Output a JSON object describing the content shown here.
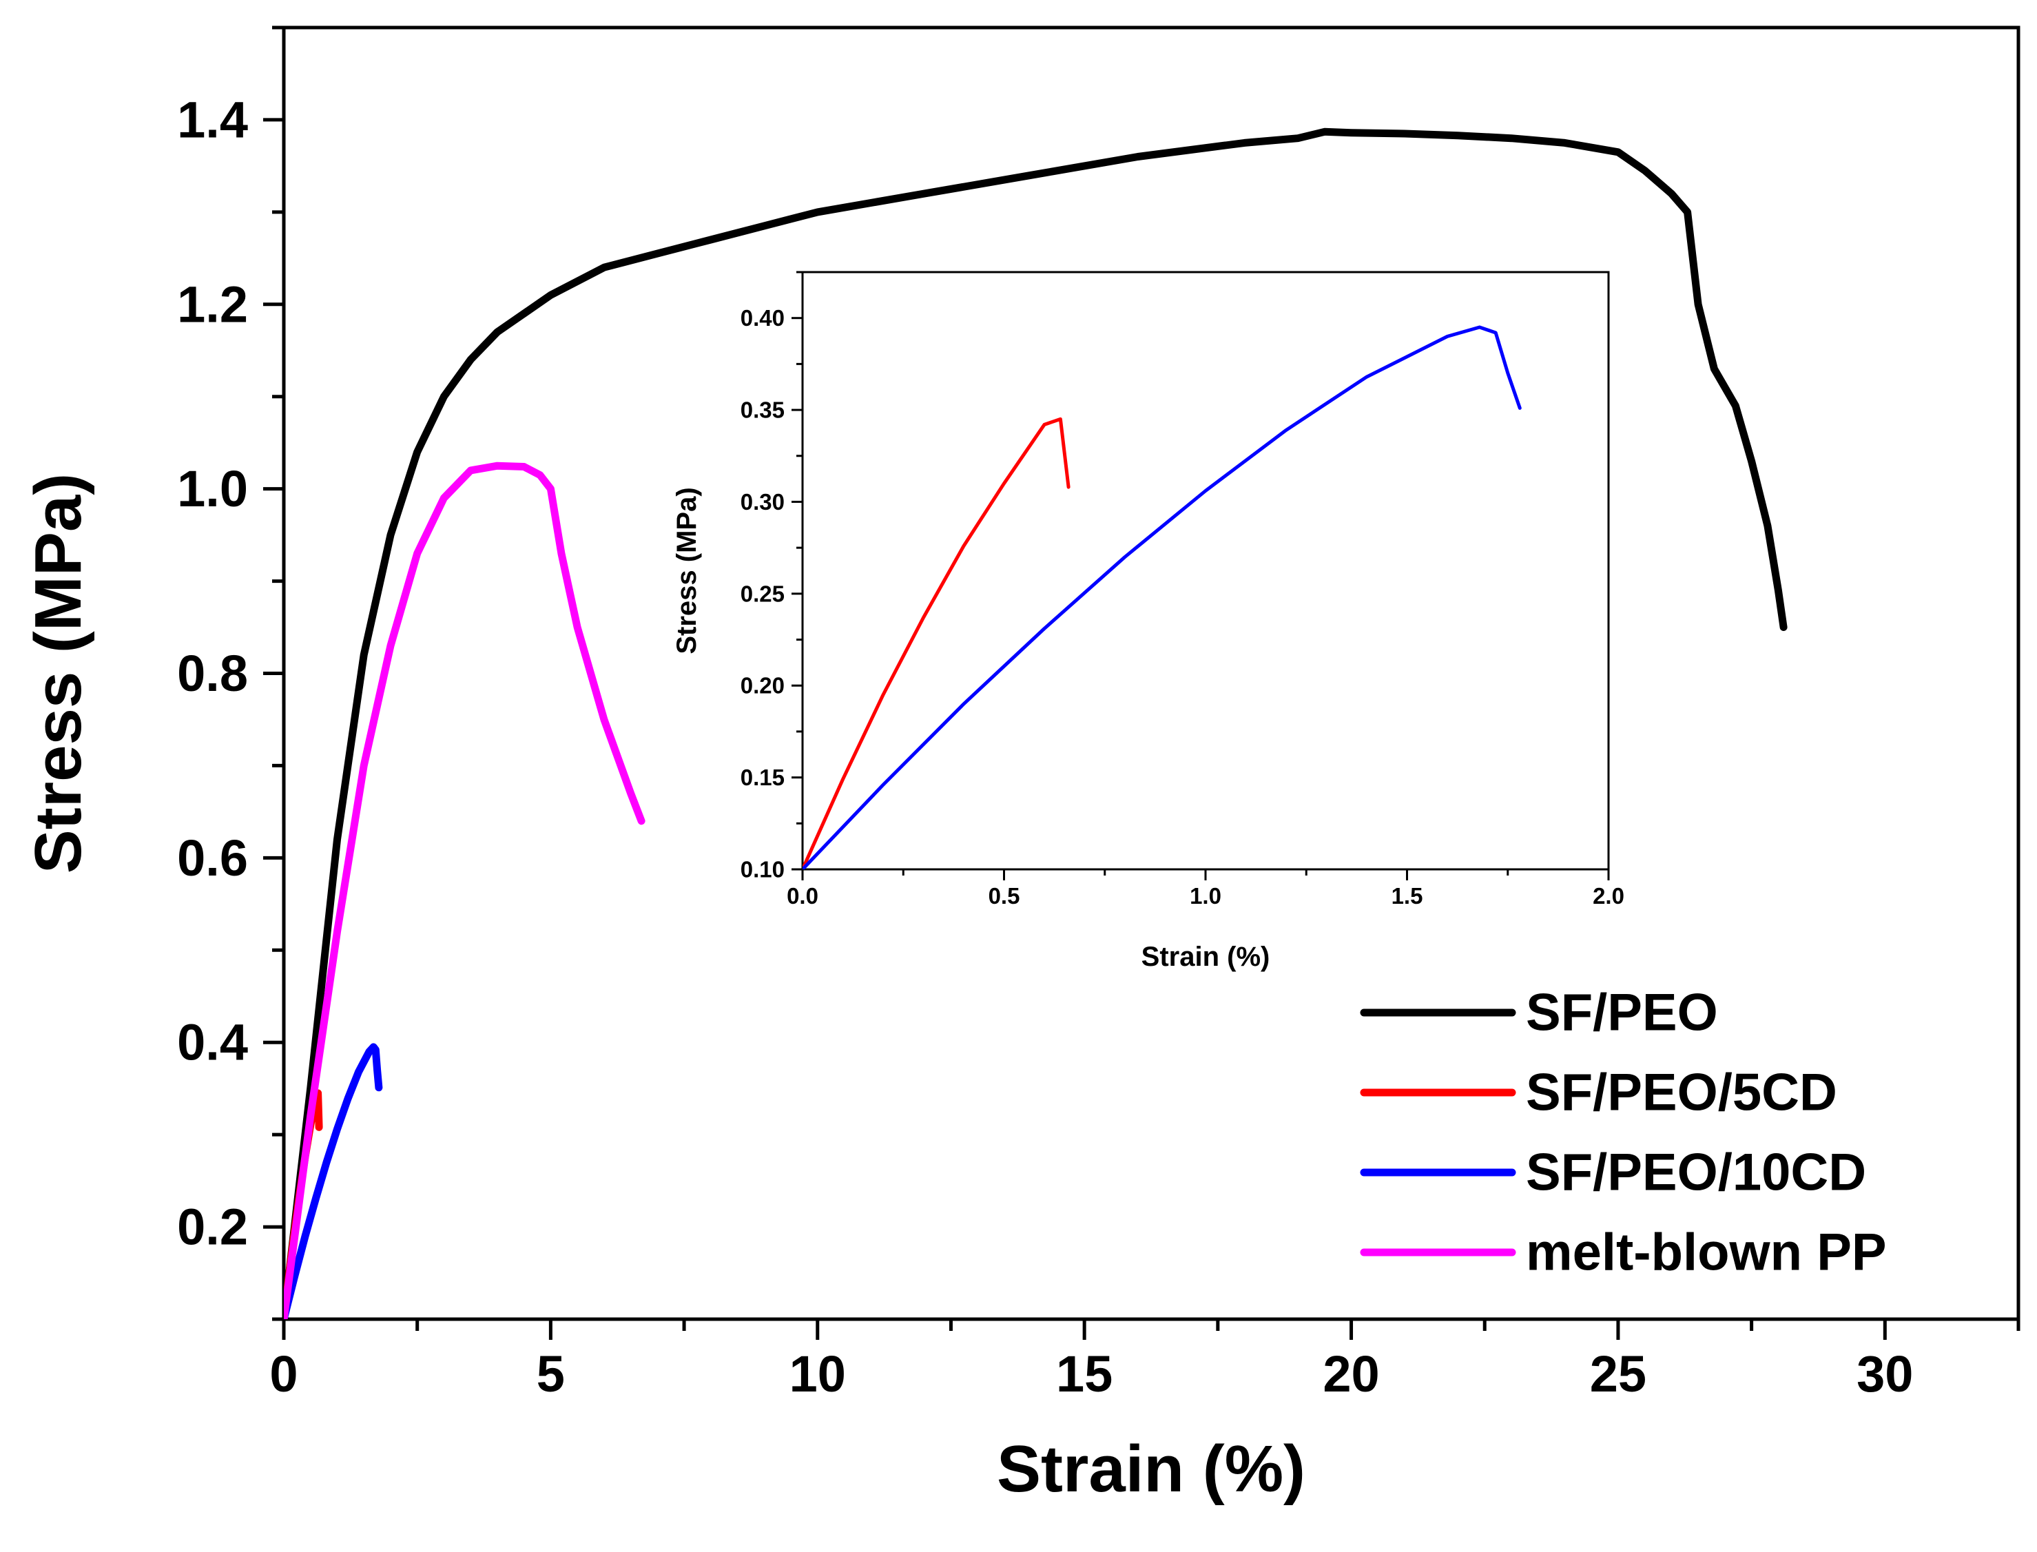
{
  "chart_data": [
    {
      "id": "main",
      "type": "line",
      "xlabel": "Strain (%)",
      "ylabel": "Stress (MPa)",
      "xlim": [
        0,
        32.5
      ],
      "ylim": [
        0.1,
        1.5
      ],
      "xticks": [
        0,
        5,
        10,
        15,
        20,
        25,
        30
      ],
      "yticks": [
        0.2,
        0.4,
        0.6,
        0.8,
        1.0,
        1.2,
        1.4
      ],
      "xtick_labels": [
        "0",
        "5",
        "10",
        "15",
        "20",
        "25",
        "30"
      ],
      "ytick_labels": [
        "0.2",
        "0.4",
        "0.6",
        "0.8",
        "1.0",
        "1.2",
        "1.4"
      ],
      "legend_position": "bottom-right",
      "series": [
        {
          "name": "SF/PEO",
          "color": "#000000",
          "x": [
            0,
            0.5,
            1.0,
            1.5,
            2.0,
            2.5,
            3.0,
            3.5,
            4.0,
            5.0,
            6.0,
            7.0,
            8.0,
            9.0,
            10.0,
            12.0,
            14.0,
            16.0,
            18.0,
            19.0,
            19.5,
            20.0,
            21.0,
            22.0,
            23.0,
            24.0,
            25.0,
            25.5,
            26.0,
            26.3,
            26.5,
            26.8,
            27.2,
            27.5,
            27.8,
            28.0,
            28.1
          ],
          "y": [
            0.1,
            0.35,
            0.62,
            0.82,
            0.95,
            1.04,
            1.1,
            1.14,
            1.17,
            1.21,
            1.24,
            1.255,
            1.27,
            1.285,
            1.3,
            1.32,
            1.34,
            1.36,
            1.375,
            1.38,
            1.387,
            1.386,
            1.385,
            1.383,
            1.38,
            1.375,
            1.365,
            1.345,
            1.32,
            1.3,
            1.2,
            1.13,
            1.09,
            1.03,
            0.96,
            0.89,
            0.85
          ]
        },
        {
          "name": "SF/PEO/5CD",
          "color": "#ff0000",
          "x": [
            0,
            0.1,
            0.2,
            0.3,
            0.4,
            0.5,
            0.6,
            0.64,
            0.66
          ],
          "y": [
            0.1,
            0.149,
            0.195,
            0.237,
            0.276,
            0.31,
            0.342,
            0.345,
            0.308
          ]
        },
        {
          "name": "SF/PEO/10CD",
          "color": "#0000ff",
          "x": [
            0,
            0.2,
            0.4,
            0.6,
            0.8,
            1.0,
            1.2,
            1.4,
            1.6,
            1.68,
            1.72,
            1.75,
            1.78
          ],
          "y": [
            0.1,
            0.146,
            0.19,
            0.231,
            0.27,
            0.306,
            0.339,
            0.368,
            0.39,
            0.395,
            0.392,
            0.37,
            0.351
          ]
        },
        {
          "name": "melt-blown PP",
          "color": "#ff00ff",
          "x": [
            0,
            0.5,
            1.0,
            1.5,
            2.0,
            2.5,
            3.0,
            3.5,
            4.0,
            4.5,
            4.8,
            5.0,
            5.2,
            5.5,
            6.0,
            6.5,
            6.7
          ],
          "y": [
            0.1,
            0.32,
            0.52,
            0.7,
            0.83,
            0.93,
            0.99,
            1.02,
            1.025,
            1.024,
            1.015,
            1.0,
            0.93,
            0.85,
            0.75,
            0.67,
            0.64
          ]
        }
      ]
    },
    {
      "id": "inset",
      "type": "line",
      "xlabel": "Strain (%)",
      "ylabel": "Stress (MPa)",
      "xlim": [
        0,
        2.0
      ],
      "ylim": [
        0.1,
        0.425
      ],
      "xticks": [
        0,
        0.5,
        1.0,
        1.5,
        2.0
      ],
      "yticks": [
        0.1,
        0.15,
        0.2,
        0.25,
        0.3,
        0.35,
        0.4
      ],
      "xtick_labels": [
        "0.0",
        "0.5",
        "1.0",
        "1.5",
        "2.0"
      ],
      "ytick_labels": [
        "0.10",
        "0.15",
        "0.20",
        "0.25",
        "0.30",
        "0.35",
        "0.40"
      ],
      "series": [
        {
          "name": "SF/PEO/5CD",
          "color": "#ff0000",
          "x": [
            0,
            0.1,
            0.2,
            0.3,
            0.4,
            0.5,
            0.6,
            0.64,
            0.66
          ],
          "y": [
            0.1,
            0.149,
            0.195,
            0.237,
            0.276,
            0.31,
            0.342,
            0.345,
            0.308
          ]
        },
        {
          "name": "SF/PEO/10CD",
          "color": "#0000ff",
          "x": [
            0,
            0.2,
            0.4,
            0.6,
            0.8,
            1.0,
            1.2,
            1.4,
            1.6,
            1.68,
            1.72,
            1.75,
            1.78
          ],
          "y": [
            0.1,
            0.146,
            0.19,
            0.231,
            0.27,
            0.306,
            0.339,
            0.368,
            0.39,
            0.395,
            0.392,
            0.37,
            0.351
          ]
        }
      ]
    }
  ]
}
